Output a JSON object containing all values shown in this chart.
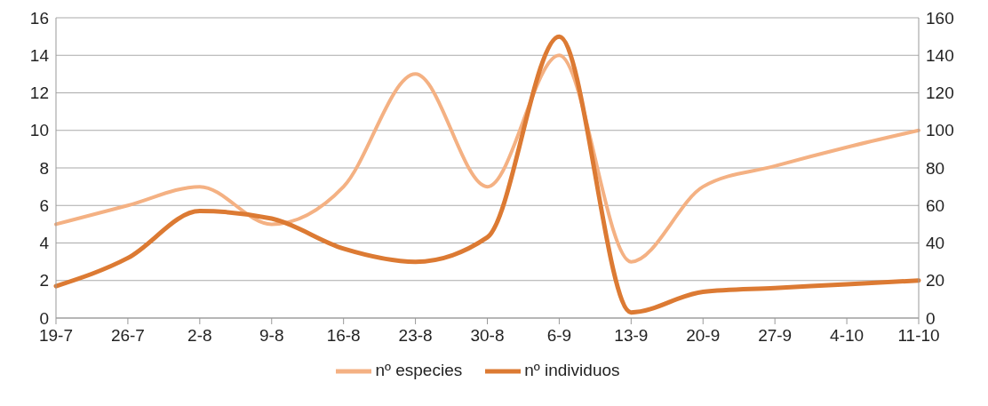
{
  "chart_data": {
    "type": "line",
    "categories": [
      "19-7",
      "26-7",
      "2-8",
      "9-8",
      "16-8",
      "23-8",
      "30-8",
      "6-9",
      "13-9",
      "20-9",
      "27-9",
      "4-10",
      "11-10"
    ],
    "series": [
      {
        "name": "nº especies",
        "color": "#f4b183",
        "values": [
          5,
          6,
          7,
          5,
          7,
          13,
          7,
          14,
          3,
          7,
          8.1,
          9.1,
          10
        ]
      },
      {
        "name": "nº individuos",
        "color": "#dc7a33",
        "axis": "y2",
        "values": [
          17,
          32,
          57,
          53,
          37,
          30,
          43,
          150,
          3,
          14,
          16,
          18,
          20
        ]
      }
    ],
    "ylim": [
      0,
      16
    ],
    "yticks": [
      0,
      2,
      4,
      6,
      8,
      10,
      12,
      14,
      16
    ],
    "y2lim": [
      0,
      160
    ],
    "y2ticks": [
      0,
      20,
      40,
      60,
      80,
      100,
      120,
      140,
      160
    ],
    "grid": "y",
    "legend": "bottom",
    "marker": "none",
    "line_style": "solid"
  }
}
